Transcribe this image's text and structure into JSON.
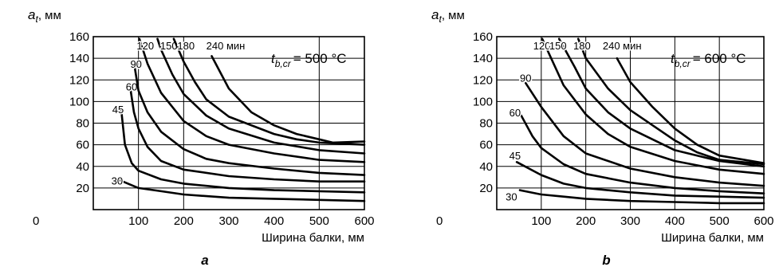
{
  "chart_data": [
    {
      "type": "line",
      "panel_label": "a",
      "condition_text": "= 500 °C",
      "condition_symbol": {
        "main": "t",
        "sub": "b,cr"
      },
      "ylabel": {
        "main": "a",
        "sub": "t",
        "unit": ", мм"
      },
      "xlabel": "Ширина балки, мм",
      "xlim": [
        0,
        600
      ],
      "ylim": [
        0,
        160
      ],
      "x_ticks": [
        0,
        100,
        200,
        300,
        400,
        500,
        600
      ],
      "y_ticks": [
        20,
        40,
        60,
        80,
        100,
        120,
        140,
        160
      ],
      "x_grid": [
        100,
        200,
        500
      ],
      "y_grid": [
        20,
        40,
        60,
        80,
        100,
        120,
        140,
        160
      ],
      "series": [
        {
          "name": "30",
          "label_at": [
            40,
            27
          ],
          "points": [
            [
              60,
              27
            ],
            [
              100,
              20
            ],
            [
              150,
              17
            ],
            [
              200,
              14
            ],
            [
              300,
              11
            ],
            [
              400,
              10
            ],
            [
              500,
              9
            ],
            [
              600,
              8
            ]
          ]
        },
        {
          "name": "45",
          "label_at": [
            42,
            93
          ],
          "points": [
            [
              62,
              92
            ],
            [
              70,
              60
            ],
            [
              85,
              43
            ],
            [
              100,
              36
            ],
            [
              150,
              28
            ],
            [
              200,
              24
            ],
            [
              300,
              20
            ],
            [
              400,
              18
            ],
            [
              500,
              17
            ],
            [
              600,
              16
            ]
          ]
        },
        {
          "name": "60",
          "label_at": [
            72,
            114
          ],
          "points": [
            [
              82,
              112
            ],
            [
              90,
              90
            ],
            [
              100,
              75
            ],
            [
              120,
              58
            ],
            [
              150,
              45
            ],
            [
              200,
              37
            ],
            [
              300,
              31
            ],
            [
              400,
              28
            ],
            [
              500,
              26
            ],
            [
              600,
              26
            ]
          ]
        },
        {
          "name": "90",
          "label_at": [
            82,
            135
          ],
          "points": [
            [
              92,
              131
            ],
            [
              100,
              110
            ],
            [
              120,
              90
            ],
            [
              150,
              72
            ],
            [
              200,
              56
            ],
            [
              250,
              47
            ],
            [
              300,
              43
            ],
            [
              400,
              38
            ],
            [
              500,
              34
            ],
            [
              600,
              32
            ]
          ]
        },
        {
          "name": "120",
          "label_at": [
            96,
            152
          ],
          "points": [
            [
              102,
              158
            ],
            [
              120,
              135
            ],
            [
              150,
              108
            ],
            [
              200,
              82
            ],
            [
              250,
              68
            ],
            [
              300,
              60
            ],
            [
              400,
              52
            ],
            [
              500,
              46
            ],
            [
              600,
              44
            ]
          ]
        },
        {
          "name": "150",
          "label_at": [
            148,
            152
          ],
          "points": [
            [
              142,
              158
            ],
            [
              150,
              148
            ],
            [
              175,
              125
            ],
            [
              200,
              107
            ],
            [
              250,
              87
            ],
            [
              300,
              75
            ],
            [
              400,
              62
            ],
            [
              500,
              55
            ],
            [
              600,
              52
            ]
          ]
        },
        {
          "name": "180",
          "label_at": [
            186,
            152
          ],
          "points": [
            [
              178,
              158
            ],
            [
              200,
              137
            ],
            [
              225,
              118
            ],
            [
              250,
              102
            ],
            [
              300,
              86
            ],
            [
              400,
              70
            ],
            [
              450,
              65
            ],
            [
              500,
              62
            ],
            [
              600,
              60
            ]
          ]
        },
        {
          "name": "240 мин",
          "label_at": [
            250,
            152
          ],
          "points": [
            [
              262,
              142
            ],
            [
              300,
              112
            ],
            [
              350,
              90
            ],
            [
              400,
              78
            ],
            [
              450,
              70
            ],
            [
              500,
              65
            ],
            [
              530,
              62
            ],
            [
              600,
              63
            ]
          ]
        }
      ]
    },
    {
      "type": "line",
      "panel_label": "b",
      "condition_text": "= 600 °C",
      "condition_symbol": {
        "main": "t",
        "sub": "b,cr"
      },
      "ylabel": {
        "main": "a",
        "sub": "t",
        "unit": ", мм"
      },
      "xlabel": "Ширина балки, мм",
      "xlim": [
        0,
        600
      ],
      "ylim": [
        0,
        160
      ],
      "x_ticks": [
        0,
        100,
        200,
        300,
        400,
        500,
        600
      ],
      "y_ticks": [
        20,
        40,
        60,
        80,
        100,
        120,
        140,
        160
      ],
      "x_grid": [
        100,
        200,
        300,
        400,
        500
      ],
      "y_grid": [
        20,
        40,
        60,
        80,
        100,
        120,
        140,
        160
      ],
      "series": [
        {
          "name": "30",
          "label_at": [
            20,
            12
          ],
          "points": [
            [
              52,
              18
            ],
            [
              100,
              14
            ],
            [
              150,
              12
            ],
            [
              200,
              10
            ],
            [
              300,
              8
            ],
            [
              400,
              7
            ],
            [
              500,
              6
            ],
            [
              600,
              6
            ]
          ]
        },
        {
          "name": "45",
          "label_at": [
            28,
            50
          ],
          "points": [
            [
              45,
              44
            ],
            [
              100,
              32
            ],
            [
              150,
              24
            ],
            [
              200,
              20
            ],
            [
              300,
              16
            ],
            [
              400,
              13
            ],
            [
              500,
              12
            ],
            [
              600,
              11
            ]
          ]
        },
        {
          "name": "60",
          "label_at": [
            28,
            90
          ],
          "points": [
            [
              55,
              87
            ],
            [
              80,
              68
            ],
            [
              100,
              57
            ],
            [
              150,
              42
            ],
            [
              200,
              33
            ],
            [
              300,
              25
            ],
            [
              400,
              20
            ],
            [
              500,
              17
            ],
            [
              600,
              15
            ]
          ]
        },
        {
          "name": "90",
          "label_at": [
            52,
            122
          ],
          "points": [
            [
              65,
              117
            ],
            [
              100,
              95
            ],
            [
              150,
              68
            ],
            [
              200,
              52
            ],
            [
              300,
              38
            ],
            [
              400,
              30
            ],
            [
              500,
              25
            ],
            [
              600,
              22
            ]
          ]
        },
        {
          "name": "120",
          "label_at": [
            82,
            152
          ],
          "points": [
            [
              102,
              158
            ],
            [
              150,
              115
            ],
            [
              200,
              88
            ],
            [
              250,
              70
            ],
            [
              300,
              58
            ],
            [
              400,
              45
            ],
            [
              500,
              37
            ],
            [
              600,
              33
            ]
          ]
        },
        {
          "name": "150",
          "label_at": [
            118,
            152
          ],
          "points": [
            [
              140,
              158
            ],
            [
              175,
              132
            ],
            [
              200,
              112
            ],
            [
              250,
              90
            ],
            [
              300,
              75
            ],
            [
              400,
              55
            ],
            [
              500,
              45
            ],
            [
              600,
              40
            ]
          ]
        },
        {
          "name": "180",
          "label_at": [
            172,
            152
          ],
          "points": [
            [
              183,
              158
            ],
            [
              200,
              140
            ],
            [
              250,
              112
            ],
            [
              300,
              92
            ],
            [
              350,
              78
            ],
            [
              400,
              64
            ],
            [
              450,
              53
            ],
            [
              500,
              46
            ],
            [
              600,
              42
            ]
          ]
        },
        {
          "name": "240 мин",
          "label_at": [
            238,
            152
          ],
          "points": [
            [
              270,
              140
            ],
            [
              300,
              118
            ],
            [
              350,
              95
            ],
            [
              400,
              75
            ],
            [
              450,
              60
            ],
            [
              500,
              50
            ],
            [
              600,
              43
            ]
          ]
        }
      ]
    }
  ]
}
